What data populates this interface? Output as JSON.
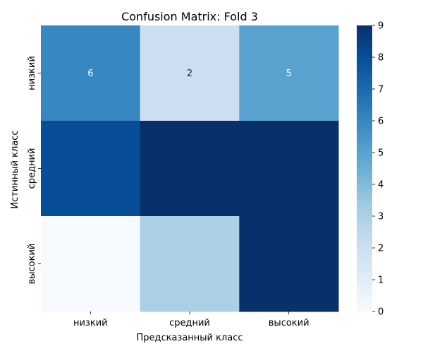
{
  "chart_data": {
    "type": "heatmap",
    "title": "Confusion Matrix: Fold 3",
    "xlabel": "Предсказанный класс",
    "ylabel": "Истинный класс",
    "x_categories": [
      "низкий",
      "средний",
      "высокий"
    ],
    "y_categories": [
      "низкий",
      "средний",
      "высокий"
    ],
    "values": [
      [
        6,
        2,
        5
      ],
      [
        8,
        9,
        9
      ],
      [
        0,
        3,
        9
      ]
    ],
    "annotated_rows": [
      0
    ],
    "colormap": "Blues",
    "color_low": "#f7fbff",
    "color_high": "#08306b",
    "vmin": 0,
    "vmax": 9,
    "colorbar_ticks": [
      0,
      1,
      2,
      3,
      4,
      5,
      6,
      7,
      8,
      9
    ]
  }
}
